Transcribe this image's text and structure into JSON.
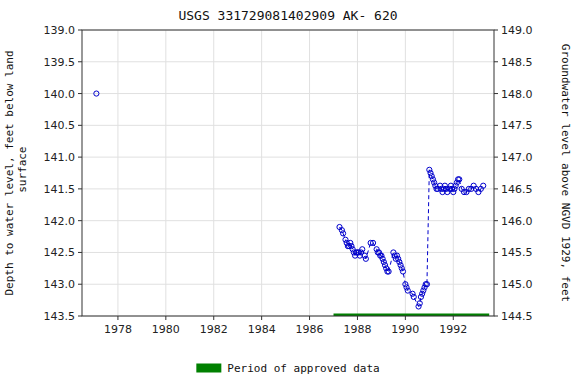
{
  "chart_data": {
    "type": "line",
    "title": "USGS 331729081402909 AK- 620",
    "y_label": "Depth to water level, feet below land\n surface",
    "y2_label": "Groundwater level above NGVD 1929, feet",
    "xlim": [
      1976.5,
      1993.7
    ],
    "xticks": [
      1978,
      1980,
      1982,
      1984,
      1986,
      1988,
      1990,
      1992
    ],
    "ylim": [
      143.5,
      139.0
    ],
    "yticks": [
      {
        "value": 139.0,
        "label": "139.0"
      },
      139.5,
      {
        "value": 140.0,
        "label": "140.0"
      },
      140.5,
      {
        "value": 141.0,
        "label": "141.0"
      },
      141.5,
      {
        "value": 142.0,
        "label": "142.0"
      },
      142.5,
      {
        "value": 143.0,
        "label": "143.0"
      },
      143.5
    ],
    "y2lim": [
      144.5,
      149.0
    ],
    "y2ticks": [
      {
        "value": 149.0,
        "label": "149.0"
      },
      148.5,
      {
        "value": 148.0,
        "label": "148.0"
      },
      147.5,
      {
        "value": 147.0,
        "label": "147.0"
      },
      146.5,
      {
        "value": 146.0,
        "label": "146.0"
      },
      145.5,
      {
        "value": 145.0,
        "label": "145.0"
      },
      144.5
    ],
    "grid": true,
    "legend": "bottom",
    "series": [
      {
        "type": "line",
        "color": "#0000cc",
        "line_style": "dashed",
        "marker": "circle",
        "x": [
          1987.25,
          1987.35,
          1987.4,
          1987.5,
          1987.55,
          1987.6,
          1987.65,
          1987.7,
          1987.75,
          1987.8,
          1987.85,
          1987.9,
          1987.95,
          1988.0,
          1988.05,
          1988.1,
          1988.15,
          1988.2,
          1988.3,
          1988.35,
          1988.55,
          1988.65,
          1988.8,
          1988.85,
          1988.9,
          1988.95,
          1989.0,
          1989.05,
          1989.1,
          1989.15,
          1989.2,
          1989.25,
          1989.3,
          1989.5,
          1989.55,
          1989.6,
          1989.65,
          1989.7,
          1989.75,
          1989.8,
          1989.85,
          1989.9,
          1990.0,
          1990.05,
          1990.1,
          1990.3,
          1990.35,
          1990.55,
          1990.6,
          1990.65,
          1990.7,
          1990.75,
          1990.8,
          1990.85,
          1990.9,
          1991.0,
          1991.05,
          1991.1,
          1991.15,
          1991.2,
          1991.25,
          1991.3,
          1991.35,
          1991.45,
          1991.5,
          1991.55,
          1991.6,
          1991.65,
          1991.7,
          1991.75,
          1991.85,
          1991.9,
          1991.95,
          1992.0,
          1992.05,
          1992.1,
          1992.15,
          1992.2,
          1992.25,
          1992.35,
          1992.45,
          1992.55,
          1992.65,
          1992.75,
          1992.85,
          1992.95,
          1993.05,
          1993.15,
          1993.25
        ],
        "values": [
          142.1,
          142.15,
          142.2,
          142.3,
          142.35,
          142.4,
          142.4,
          142.35,
          142.4,
          142.45,
          142.5,
          142.55,
          142.5,
          142.5,
          142.5,
          142.55,
          142.5,
          142.45,
          142.55,
          142.6,
          142.35,
          142.35,
          142.45,
          142.5,
          142.5,
          142.55,
          142.55,
          142.6,
          142.65,
          142.7,
          142.75,
          142.8,
          142.8,
          142.5,
          142.55,
          142.6,
          142.55,
          142.6,
          142.65,
          142.7,
          142.75,
          142.8,
          143.0,
          143.05,
          143.1,
          143.15,
          143.2,
          143.35,
          143.3,
          143.2,
          143.15,
          143.1,
          143.05,
          143.0,
          143.0,
          141.2,
          141.25,
          141.3,
          141.35,
          141.4,
          141.45,
          141.5,
          141.5,
          141.45,
          141.5,
          141.55,
          141.5,
          141.45,
          141.5,
          141.55,
          141.5,
          141.45,
          141.5,
          141.55,
          141.5,
          141.45,
          141.4,
          141.35,
          141.35,
          141.5,
          141.55,
          141.55,
          141.5,
          141.5,
          141.45,
          141.5,
          141.55,
          141.5,
          141.45
        ]
      },
      {
        "type": "scatter",
        "color": "#0000cc",
        "marker": "circle",
        "x": [
          1977.1
        ],
        "values": [
          140.0
        ]
      },
      {
        "name": "Period of approved data",
        "type": "line",
        "color": "#008000",
        "line_style": "solid",
        "x": [
          1987.0,
          1993.5
        ],
        "values": [
          143.5,
          143.5
        ]
      }
    ]
  }
}
